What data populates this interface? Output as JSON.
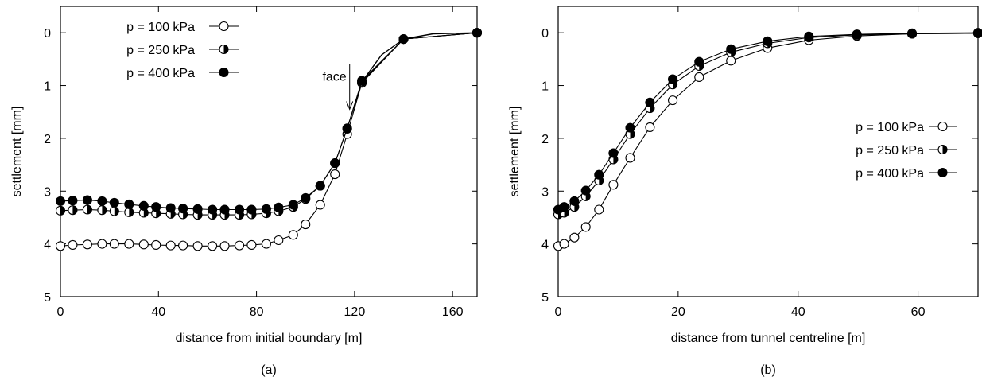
{
  "chart_data": [
    {
      "type": "line",
      "panel_label": "(a)",
      "xlabel": "distance from initial boundary [m]",
      "ylabel": "settlement [mm]",
      "xlim": [
        0,
        170
      ],
      "ylim": [
        5,
        -0.5
      ],
      "y_inverted": true,
      "xticks": [
        0,
        40,
        80,
        120,
        160
      ],
      "yticks": [
        0,
        1,
        2,
        3,
        4,
        5
      ],
      "grid": false,
      "legend_position": "top-left",
      "annotations": [
        {
          "text": "face",
          "x": 118,
          "y": 0.85,
          "arrow_to": [
            118,
            1.45
          ]
        }
      ],
      "series": [
        {
          "name": "p = 100 kPa",
          "marker": "open-circle",
          "x": [
            0,
            5,
            11,
            17,
            22,
            28,
            34,
            39,
            45,
            50,
            56,
            62,
            67,
            73,
            78,
            84,
            89,
            95,
            100,
            106,
            112,
            117,
            123,
            140,
            170
          ],
          "y": [
            4.04,
            4.02,
            4.01,
            4.0,
            4.0,
            4.0,
            4.01,
            4.02,
            4.03,
            4.03,
            4.04,
            4.04,
            4.04,
            4.03,
            4.02,
            4.0,
            3.93,
            3.83,
            3.63,
            3.26,
            2.68,
            1.92,
            0.95,
            0.12,
            0.0
          ]
        },
        {
          "name": "p = 250 kPa",
          "marker": "half-circle",
          "x": [
            0,
            5,
            11,
            17,
            22,
            28,
            34,
            39,
            45,
            50,
            56,
            62,
            67,
            73,
            78,
            84,
            89,
            95,
            100,
            106,
            112,
            117,
            123,
            140,
            170
          ],
          "y": [
            3.37,
            3.36,
            3.35,
            3.36,
            3.38,
            3.4,
            3.41,
            3.42,
            3.43,
            3.44,
            3.45,
            3.45,
            3.45,
            3.45,
            3.44,
            3.42,
            3.38,
            3.3,
            3.15,
            2.9,
            2.47,
            1.82,
            0.93,
            0.12,
            0.0
          ]
        },
        {
          "name": "p = 400 kPa",
          "marker": "filled-circle",
          "x": [
            0,
            5,
            11,
            17,
            22,
            28,
            34,
            39,
            45,
            50,
            56,
            62,
            67,
            73,
            78,
            84,
            89,
            95,
            100,
            106,
            112,
            117,
            123,
            140,
            170
          ],
          "y": [
            3.19,
            3.18,
            3.17,
            3.19,
            3.22,
            3.25,
            3.28,
            3.3,
            3.32,
            3.33,
            3.34,
            3.35,
            3.35,
            3.35,
            3.35,
            3.34,
            3.31,
            3.26,
            3.13,
            2.9,
            2.47,
            1.81,
            0.91,
            0.12,
            0.0
          ]
        }
      ],
      "shared_line": {
        "x": [
          0,
          5,
          11,
          17,
          22,
          28,
          34,
          39,
          45,
          50,
          56,
          62,
          67,
          73,
          78,
          84,
          89,
          95,
          100,
          106,
          112,
          117,
          123,
          131,
          140,
          152,
          170
        ],
        "y_note": "curve passes through 0.42 at x=131 and 0.02 at x=152"
      }
    },
    {
      "type": "line",
      "panel_label": "(b)",
      "xlabel": "distance from tunnel centreline [m]",
      "ylabel": "settlement [mm]",
      "xlim": [
        0,
        70
      ],
      "ylim": [
        5,
        -0.5
      ],
      "y_inverted": true,
      "xticks": [
        0,
        20,
        40,
        60
      ],
      "yticks": [
        0,
        1,
        2,
        3,
        4,
        5
      ],
      "grid": false,
      "legend_position": "right",
      "series": [
        {
          "name": "p = 100 kPa",
          "marker": "open-circle",
          "x": [
            0,
            1.0,
            2.7,
            4.6,
            6.8,
            9.2,
            12.0,
            15.3,
            19.1,
            23.5,
            28.8,
            34.9,
            41.8,
            49.8,
            59.0,
            70.0
          ],
          "y": [
            4.04,
            4.0,
            3.88,
            3.68,
            3.35,
            2.88,
            2.37,
            1.79,
            1.28,
            0.84,
            0.53,
            0.29,
            0.14,
            0.06,
            0.02,
            0.01
          ]
        },
        {
          "name": "p = 250 kPa",
          "marker": "half-circle",
          "x": [
            0,
            1.0,
            2.7,
            4.6,
            6.8,
            9.2,
            12.0,
            15.3,
            19.1,
            23.5,
            28.8,
            34.9,
            41.8,
            49.8,
            59.0,
            70.0
          ],
          "y": [
            3.44,
            3.41,
            3.3,
            3.1,
            2.8,
            2.4,
            1.92,
            1.43,
            0.98,
            0.63,
            0.37,
            0.2,
            0.09,
            0.04,
            0.02,
            0.01
          ]
        },
        {
          "name": "p = 400 kPa",
          "marker": "filled-circle",
          "x": [
            0,
            1.0,
            2.7,
            4.6,
            6.8,
            9.2,
            12.0,
            15.3,
            19.1,
            23.5,
            28.8,
            34.9,
            41.8,
            49.8,
            59.0,
            70.0
          ],
          "y": [
            3.35,
            3.3,
            3.19,
            2.99,
            2.69,
            2.28,
            1.8,
            1.32,
            0.88,
            0.55,
            0.31,
            0.16,
            0.07,
            0.03,
            0.01,
            0.0
          ]
        }
      ]
    }
  ]
}
